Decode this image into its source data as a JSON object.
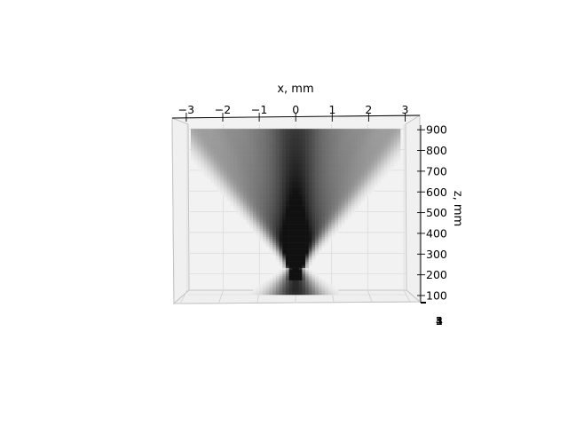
{
  "chart_data": {
    "type": "heatmap",
    "view": "3d-projection-top",
    "xlabel": "x, mm",
    "ylabel": "",
    "zlabel": "z, mm",
    "xlim": [
      -3.3,
      3.3
    ],
    "zlim": [
      60,
      920
    ],
    "x_ticks": [
      -3,
      -2,
      -1,
      0,
      1,
      2,
      3
    ],
    "x_tick_labels": [
      "−3",
      "−2",
      "−1",
      "0",
      "1",
      "2",
      "3"
    ],
    "z_ticks": [
      100,
      200,
      300,
      400,
      500,
      600,
      700,
      800,
      900
    ],
    "z_tick_labels": [
      "100",
      "200",
      "300",
      "400",
      "500",
      "600",
      "700",
      "800",
      "900"
    ],
    "y_tick_labels_overlapped": [
      "1",
      "2",
      "3",
      "4",
      "5"
    ],
    "grid": true,
    "colormap": "greys",
    "colors": {
      "pane": "#f2f2f2",
      "pane_edge": "#b0b0b0",
      "grid": "#dcdcdc",
      "density_max": "#111111"
    },
    "density_model": {
      "x_range": [
        -2.9,
        2.9
      ],
      "z_range": [
        100,
        900
      ],
      "waist_z": 230,
      "fan_half_angle_deg": 22
    }
  }
}
